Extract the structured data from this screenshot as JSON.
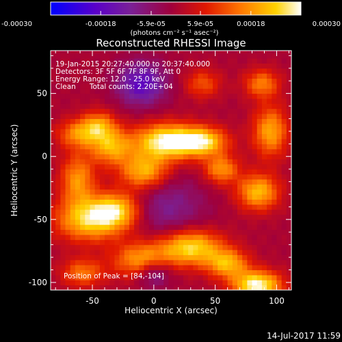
{
  "chart_data": {
    "type": "heatmap",
    "title": "Reconstructed RHESSI Image",
    "xlabel": "Heliocentric X (arcsec)",
    "ylabel": "Heliocentric Y (arcsec)",
    "xlim": [
      -84,
      112
    ],
    "ylim": [
      -106,
      84
    ],
    "x_ticks": [
      -50,
      0,
      50,
      100
    ],
    "y_ticks": [
      -100,
      -50,
      0,
      50
    ],
    "colorbar": {
      "min": -0.0003,
      "max": 0.0003,
      "tick_values": [
        -0.0003,
        -0.00018,
        -5.9e-05,
        5.9e-05,
        0.00018,
        0.0003
      ],
      "tick_labels": [
        "-0.00030",
        "-0.00018",
        "-5.9e-05",
        "5.9e-05",
        "0.00018",
        "0.00030"
      ],
      "unit_label": "(photons cm⁻² s⁻¹ asec⁻²)",
      "colors": [
        "#0000ff",
        "#5a00c8",
        "#7a2096",
        "#a0003c",
        "#e01800",
        "#ff7800",
        "#ffd200",
        "#ffffff"
      ]
    },
    "annotations": [
      "19-Jan-2015 20:27:40.000 to 20:37:40.000",
      "Detectors: 3F 5F 6F 7F 8F 9F, Att 0",
      "Energy Range: 12.0 - 25.0 keV",
      "Clean      Total counts: 2.20E+04"
    ],
    "peak_label": "Position of Peak = [84,-104]",
    "peak": {
      "x": 84,
      "y": -104
    },
    "grid": false,
    "pixel_size_arcsec": 4,
    "sources": [
      {
        "x": -52,
        "y": -50,
        "sx": 20,
        "sy": 12,
        "amp": 0.00024
      },
      {
        "x": -30,
        "y": -42,
        "sx": 14,
        "sy": 10,
        "amp": 0.0002
      },
      {
        "x": -62,
        "y": -18,
        "sx": 10,
        "sy": 14,
        "amp": 0.00018
      },
      {
        "x": -35,
        "y": 8,
        "sx": 12,
        "sy": 10,
        "amp": 0.0002
      },
      {
        "x": -62,
        "y": 18,
        "sx": 12,
        "sy": 8,
        "amp": 0.00016
      },
      {
        "x": -45,
        "y": 25,
        "sx": 10,
        "sy": 8,
        "amp": 0.00017
      },
      {
        "x": 10,
        "y": 12,
        "sx": 18,
        "sy": 10,
        "amp": 0.0003
      },
      {
        "x": 40,
        "y": 12,
        "sx": 14,
        "sy": 8,
        "amp": 0.00024
      },
      {
        "x": -8,
        "y": -12,
        "sx": 14,
        "sy": 10,
        "amp": 0.00022
      },
      {
        "x": 55,
        "y": -10,
        "sx": 10,
        "sy": 8,
        "amp": 0.00018
      },
      {
        "x": -10,
        "y": -82,
        "sx": 16,
        "sy": 10,
        "amp": 0.0002
      },
      {
        "x": 30,
        "y": -72,
        "sx": 18,
        "sy": 10,
        "amp": 0.00026
      },
      {
        "x": 60,
        "y": -85,
        "sx": 12,
        "sy": 8,
        "amp": 0.0002
      },
      {
        "x": 84,
        "y": -102,
        "sx": 14,
        "sy": 8,
        "amp": 0.0003
      },
      {
        "x": 85,
        "y": -28,
        "sx": 12,
        "sy": 10,
        "amp": 0.00022
      },
      {
        "x": 95,
        "y": 20,
        "sx": 10,
        "sy": 14,
        "amp": 0.0002
      },
      {
        "x": 88,
        "y": 58,
        "sx": 10,
        "sy": 8,
        "amp": 0.00016
      },
      {
        "x": 40,
        "y": 58,
        "sx": 10,
        "sy": 8,
        "amp": 0.00012
      },
      {
        "x": -58,
        "y": -92,
        "sx": 12,
        "sy": 8,
        "amp": 0.00015
      },
      {
        "x": -10,
        "y": 58,
        "sx": 14,
        "sy": 12,
        "amp": -0.00018
      },
      {
        "x": 0,
        "y": -92,
        "sx": 10,
        "sy": 8,
        "amp": -0.00014
      },
      {
        "x": 10,
        "y": -40,
        "sx": 22,
        "sy": 18,
        "amp": -0.0001
      }
    ]
  },
  "footer": {
    "date": "14-Jul-2017 11:59"
  }
}
